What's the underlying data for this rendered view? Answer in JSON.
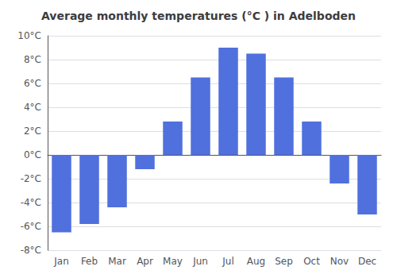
{
  "chart_data": {
    "type": "bar",
    "title": "Average monthly temperatures (°C ) in Adelboden",
    "categories": [
      "Jan",
      "Feb",
      "Mar",
      "Apr",
      "May",
      "Jun",
      "Jul",
      "Aug",
      "Sep",
      "Oct",
      "Nov",
      "Dec"
    ],
    "values": [
      -6.5,
      -5.8,
      -4.4,
      -1.2,
      2.8,
      6.5,
      9.0,
      8.5,
      6.5,
      2.8,
      -2.4,
      -5.0
    ],
    "ylim": [
      -8,
      10
    ],
    "yticks": [
      {
        "value": -8,
        "label": "-8°C"
      },
      {
        "value": -6,
        "label": "-6°C"
      },
      {
        "value": -4,
        "label": "-4°C"
      },
      {
        "value": -2,
        "label": "-2°C"
      },
      {
        "value": 0,
        "label": "0°C"
      },
      {
        "value": 2,
        "label": "2°C"
      },
      {
        "value": 4,
        "label": "4°C"
      },
      {
        "value": 6,
        "label": "6°C"
      },
      {
        "value": 8,
        "label": "8°C"
      },
      {
        "value": 10,
        "label": "10°C"
      }
    ],
    "grid": true
  }
}
